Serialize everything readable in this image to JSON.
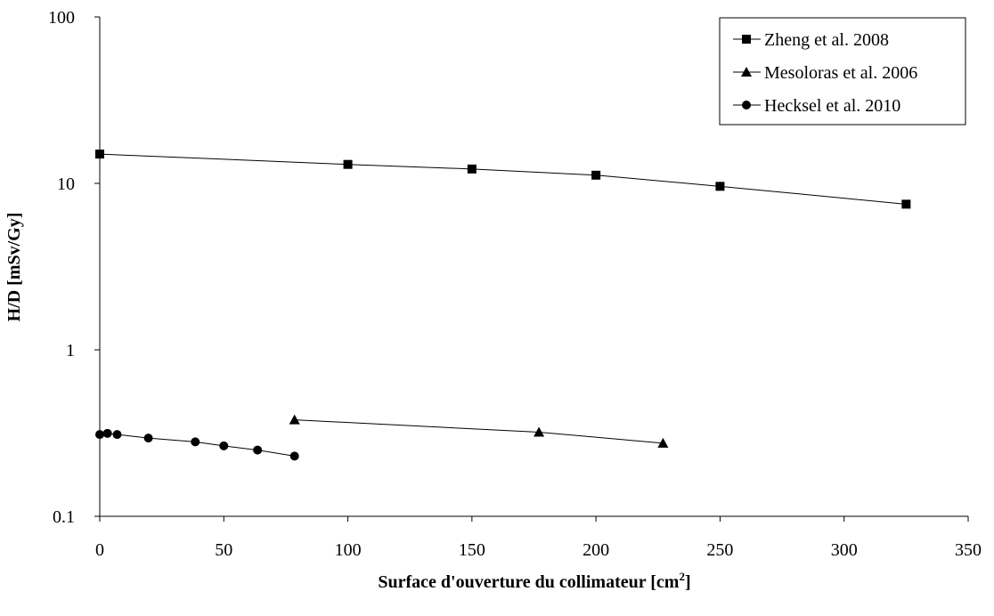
{
  "chart_data": {
    "type": "scatter",
    "title": "",
    "xlabel": "Surface d'ouverture du collimateur [cm",
    "xlabel_sup": "2",
    "xlabel_end": "]",
    "ylabel": "H/D [mSv/Gy]",
    "xlim": [
      0,
      350
    ],
    "ylim": [
      0.1,
      100
    ],
    "yscale": "log",
    "xticks": [
      "0",
      "50",
      "100",
      "150",
      "200",
      "250",
      "300",
      "350"
    ],
    "yticks": [
      "0.1",
      "1",
      "10",
      "100"
    ],
    "grid": false,
    "legend_position": "top-right",
    "series": [
      {
        "name": "Zheng et al. 2008",
        "marker": "square",
        "x": [
          0,
          100,
          150,
          200,
          250,
          325
        ],
        "y": [
          15,
          13,
          12.2,
          11.2,
          9.6,
          7.5
        ]
      },
      {
        "name": "Mesoloras et al. 2006",
        "marker": "triangle",
        "x": [
          78.5,
          177,
          227
        ],
        "y": [
          0.38,
          0.32,
          0.275
        ]
      },
      {
        "name": "Hecksel et al. 2010",
        "marker": "circle",
        "x": [
          0,
          3.1,
          7,
          19.6,
          38.5,
          50,
          63.6,
          78.5
        ],
        "y": [
          0.31,
          0.315,
          0.31,
          0.295,
          0.28,
          0.265,
          0.25,
          0.23
        ]
      }
    ]
  }
}
